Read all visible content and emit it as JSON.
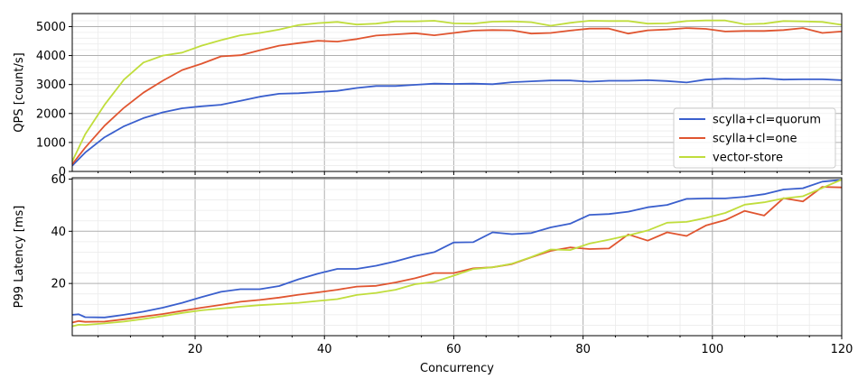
{
  "chart_data": [
    {
      "type": "line",
      "title": "",
      "xlabel": "",
      "ylabel": "QPS [count/s]",
      "xlim": [
        1,
        120
      ],
      "ylim": [
        0,
        5450
      ],
      "yticks": [
        0,
        1000,
        2000,
        3000,
        4000,
        5000
      ],
      "grid": true,
      "legend": "center-right",
      "series": [
        {
          "name": "scylla+cl=quorum",
          "color": "#3a5fcd",
          "x": [
            1,
            3,
            6,
            9,
            12,
            15,
            18,
            21,
            24,
            27,
            30,
            33,
            36,
            39,
            42,
            45,
            48,
            51,
            54,
            57,
            60,
            63,
            66,
            69,
            72,
            75,
            78,
            81,
            84,
            87,
            90,
            93,
            96,
            99,
            102,
            105,
            108,
            111,
            114,
            117,
            120
          ],
          "y": [
            200,
            650,
            1180,
            1560,
            1840,
            2040,
            2180,
            2250,
            2300,
            2440,
            2580,
            2680,
            2700,
            2740,
            2780,
            2880,
            2950,
            2950,
            2990,
            3030,
            3020,
            3030,
            3010,
            3080,
            3110,
            3140,
            3140,
            3100,
            3130,
            3130,
            3150,
            3120,
            3070,
            3170,
            3200,
            3190,
            3210,
            3170,
            3180,
            3180,
            3150
          ]
        },
        {
          "name": "scylla+cl=one",
          "color": "#e05530",
          "x": [
            1,
            3,
            6,
            9,
            12,
            15,
            18,
            21,
            24,
            27,
            30,
            33,
            36,
            39,
            42,
            45,
            48,
            51,
            54,
            57,
            60,
            63,
            66,
            69,
            72,
            75,
            78,
            81,
            84,
            87,
            90,
            93,
            96,
            99,
            102,
            105,
            108,
            111,
            114,
            117,
            120
          ],
          "y": [
            250,
            820,
            1580,
            2200,
            2720,
            3130,
            3500,
            3720,
            3970,
            4010,
            4180,
            4340,
            4430,
            4510,
            4480,
            4570,
            4690,
            4730,
            4770,
            4700,
            4780,
            4860,
            4880,
            4870,
            4760,
            4780,
            4860,
            4930,
            4930,
            4760,
            4870,
            4900,
            4950,
            4920,
            4830,
            4850,
            4850,
            4880,
            4950,
            4780,
            4830
          ]
        },
        {
          "name": "vector-store",
          "color": "#c0dd3c",
          "x": [
            1,
            3,
            6,
            9,
            12,
            15,
            18,
            21,
            24,
            27,
            30,
            33,
            36,
            39,
            42,
            45,
            48,
            51,
            54,
            57,
            60,
            63,
            66,
            69,
            72,
            75,
            78,
            81,
            84,
            87,
            90,
            93,
            96,
            99,
            102,
            105,
            108,
            111,
            114,
            117,
            120
          ],
          "y": [
            350,
            1280,
            2300,
            3170,
            3760,
            4000,
            4100,
            4340,
            4530,
            4700,
            4780,
            4900,
            5050,
            5120,
            5160,
            5070,
            5100,
            5180,
            5180,
            5200,
            5110,
            5100,
            5170,
            5180,
            5150,
            5030,
            5130,
            5200,
            5190,
            5190,
            5100,
            5110,
            5190,
            5210,
            5210,
            5080,
            5100,
            5190,
            5180,
            5160,
            5060
          ]
        }
      ]
    },
    {
      "type": "line",
      "title": "",
      "xlabel": "Concurrency",
      "ylabel": "P99 Latency [ms]",
      "xlim": [
        1,
        120
      ],
      "ylim": [
        0,
        60.5
      ],
      "xticks": [
        20,
        40,
        60,
        80,
        100,
        120
      ],
      "yticks": [
        20,
        40,
        60
      ],
      "grid": true,
      "series": [
        {
          "name": "scylla+cl=quorum",
          "color": "#3a5fcd",
          "x": [
            1,
            2,
            3,
            6,
            9,
            12,
            15,
            18,
            21,
            24,
            27,
            30,
            33,
            36,
            39,
            42,
            45,
            48,
            51,
            54,
            57,
            60,
            63,
            66,
            69,
            72,
            75,
            78,
            81,
            84,
            87,
            90,
            93,
            96,
            99,
            102,
            105,
            108,
            111,
            114,
            117,
            120
          ],
          "y": [
            8,
            8.2,
            7.1,
            7,
            8,
            9.2,
            10.7,
            12.6,
            14.8,
            16.8,
            17.8,
            17.8,
            19,
            21.6,
            23.8,
            25.6,
            25.6,
            26.8,
            28.5,
            30.5,
            32,
            35.7,
            35.8,
            39.6,
            38.9,
            39.3,
            41.5,
            42.9,
            46.3,
            46.6,
            47.5,
            49.2,
            50.1,
            52.4,
            52.6,
            52.6,
            53.2,
            54.2,
            56,
            56.5,
            59,
            59.7
          ]
        },
        {
          "name": "scylla+cl=one",
          "color": "#e05530",
          "x": [
            1,
            2,
            3,
            6,
            9,
            12,
            15,
            18,
            21,
            24,
            27,
            30,
            33,
            36,
            39,
            42,
            45,
            48,
            51,
            54,
            57,
            60,
            63,
            66,
            69,
            72,
            75,
            78,
            81,
            84,
            87,
            90,
            93,
            96,
            99,
            102,
            105,
            108,
            111,
            114,
            117,
            120
          ],
          "y": [
            5,
            5.6,
            5.3,
            5.4,
            6.3,
            7.3,
            8.3,
            9.5,
            10.7,
            11.8,
            13,
            13.7,
            14.6,
            15.7,
            16.6,
            17.6,
            18.8,
            19.1,
            20.4,
            22,
            24,
            24,
            25.8,
            26.2,
            27.4,
            30,
            32.5,
            33.8,
            33.2,
            33.4,
            38.8,
            36.4,
            39.6,
            38.2,
            42.2,
            44.3,
            47.8,
            46,
            52.7,
            51.4,
            57,
            56.8
          ]
        },
        {
          "name": "vector-store",
          "color": "#c0dd3c",
          "x": [
            1,
            2,
            3,
            6,
            9,
            12,
            15,
            18,
            21,
            24,
            27,
            30,
            33,
            36,
            39,
            42,
            45,
            48,
            51,
            54,
            57,
            60,
            63,
            66,
            69,
            72,
            75,
            78,
            81,
            84,
            87,
            90,
            93,
            96,
            99,
            102,
            105,
            108,
            111,
            114,
            117,
            120
          ],
          "y": [
            3.6,
            4.2,
            4.1,
            4.7,
            5.4,
            6.4,
            7.5,
            8.7,
            9.7,
            10.4,
            11.1,
            11.7,
            12.1,
            12.6,
            13.3,
            14,
            15.6,
            16.4,
            17.6,
            19.7,
            20.6,
            23,
            25.5,
            26.2,
            27.6,
            30.1,
            33,
            32.8,
            35.3,
            36.8,
            38.4,
            40.3,
            43.3,
            43.6,
            45.1,
            47,
            50.2,
            51.1,
            52.6,
            53.4,
            56.6,
            59.8
          ]
        }
      ]
    }
  ]
}
